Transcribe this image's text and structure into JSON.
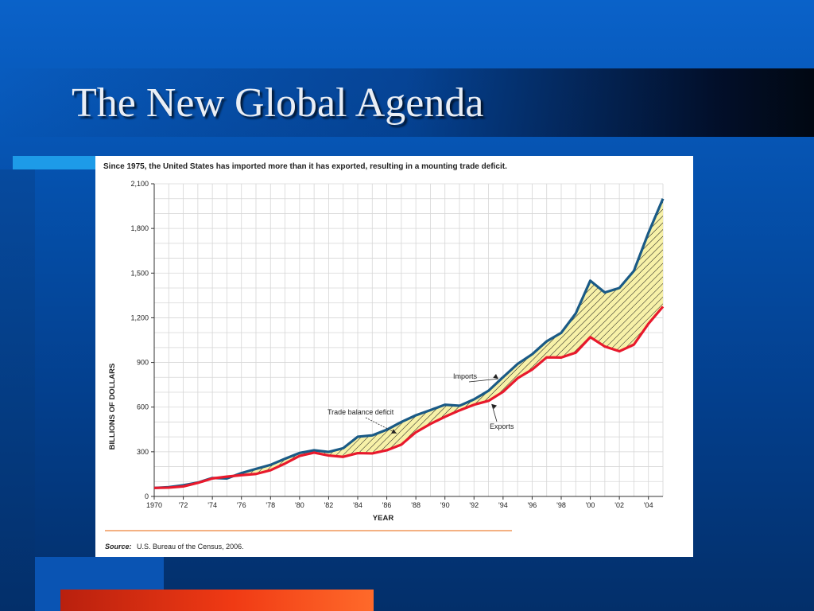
{
  "slide": {
    "title": "The New Global Agenda"
  },
  "chart_data": {
    "type": "line",
    "title": "Since 1975, the United States has imported more than it has exported, resulting in a mounting trade deficit.",
    "xlabel": "YEAR",
    "ylabel": "BILLIONS OF DOLLARS",
    "xlim": [
      1970,
      2005
    ],
    "ylim": [
      0,
      2100
    ],
    "x_ticks": [
      1970,
      1972,
      1974,
      1976,
      1978,
      1980,
      1982,
      1984,
      1986,
      1988,
      1990,
      1992,
      1994,
      1996,
      1998,
      2000,
      2002,
      2004
    ],
    "x_tick_labels": [
      "1970",
      "'72",
      "'74",
      "'76",
      "'78",
      "'80",
      "'82",
      "'84",
      "'86",
      "'88",
      "'90",
      "'92",
      "'94",
      "'96",
      "'98",
      "'00",
      "'02",
      "'04"
    ],
    "y_ticks": [
      0,
      300,
      600,
      900,
      1200,
      1500,
      1800,
      2100
    ],
    "y_tick_labels": [
      "0",
      "300",
      "600",
      "900",
      "1,200",
      "1,500",
      "1,800",
      "2,100"
    ],
    "grid": true,
    "x": [
      1970,
      1971,
      1972,
      1973,
      1974,
      1975,
      1976,
      1977,
      1978,
      1979,
      1980,
      1981,
      1982,
      1983,
      1984,
      1985,
      1986,
      1987,
      1988,
      1989,
      1990,
      1991,
      1992,
      1993,
      1994,
      1995,
      1996,
      1997,
      1998,
      1999,
      2000,
      2001,
      2002,
      2003,
      2004,
      2005
    ],
    "series": [
      {
        "name": "Imports",
        "color": "#1a5a86",
        "values": [
          57,
          62,
          75,
          93,
          124,
          121,
          157,
          185,
          212,
          253,
          292,
          310,
          299,
          324,
          401,
          410,
          448,
          500,
          545,
          580,
          616,
          609,
          652,
          710,
          801,
          890,
          955,
          1042,
          1099,
          1229,
          1449,
          1370,
          1400,
          1515,
          1770,
          2000
        ]
      },
      {
        "name": "Exports",
        "color": "#e8192c",
        "values": [
          57,
          59,
          67,
          91,
          121,
          133,
          143,
          151,
          176,
          221,
          272,
          294,
          275,
          266,
          291,
          289,
          310,
          348,
          431,
          487,
          535,
          578,
          616,
          642,
          703,
          794,
          852,
          934,
          933,
          966,
          1070,
          1007,
          975,
          1020,
          1160,
          1275
        ]
      }
    ],
    "annotations": [
      {
        "label": "Imports",
        "target_year": 1994
      },
      {
        "label": "Exports",
        "target_year": 1993
      },
      {
        "label": "Trade balance deficit",
        "target_year": 1987
      }
    ],
    "deficit_fill": "#f7f1a8",
    "source_prefix": "Source:",
    "source_text": "U.S. Bureau of the Census, 2006."
  },
  "colors": {
    "background": "#0551ad",
    "accent_light": "#1d9be8",
    "accent_orange": "#f03a14",
    "rule": "#f4b183"
  }
}
